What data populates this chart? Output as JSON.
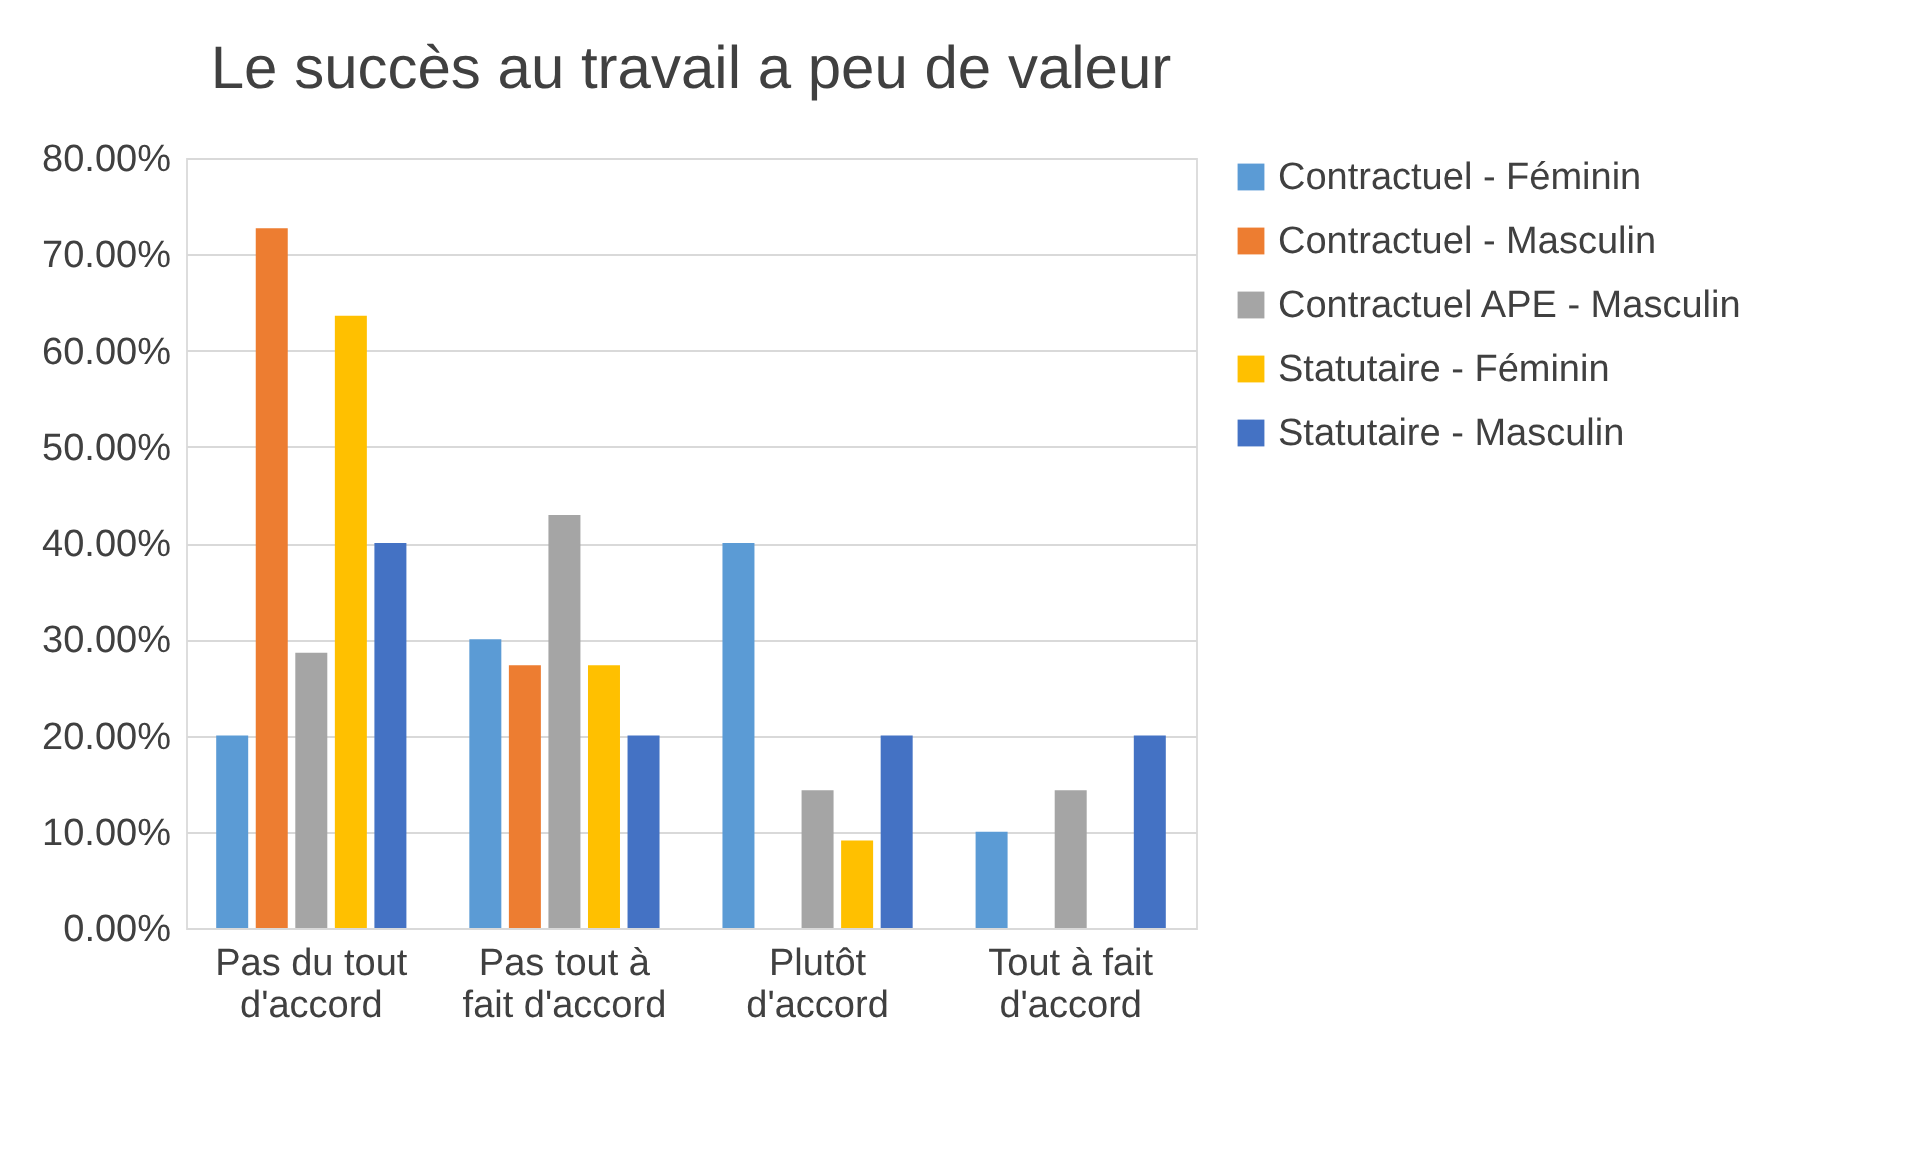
{
  "chart_data": {
    "type": "bar",
    "title": "Le succès au travail a peu de valeur",
    "categories": [
      "Pas du tout d'accord",
      "Pas tout à fait d'accord",
      "Plutôt d'accord",
      "Tout à fait d'accord"
    ],
    "series": [
      {
        "name": "Contractuel - Féminin",
        "color": "#5b9bd5",
        "values": [
          20,
          30,
          40,
          10
        ]
      },
      {
        "name": "Contractuel - Masculin",
        "color": "#ed7d31",
        "values": [
          72.7,
          27.3,
          null,
          null
        ]
      },
      {
        "name": "Contractuel APE - Masculin",
        "color": "#a5a5a5",
        "values": [
          28.6,
          42.9,
          14.3,
          14.3
        ]
      },
      {
        "name": "Statutaire - Féminin",
        "color": "#ffc000",
        "values": [
          63.6,
          27.3,
          9.1,
          null
        ]
      },
      {
        "name": "Statutaire - Masculin",
        "color": "#4472c4",
        "values": [
          40,
          20,
          20,
          20
        ]
      }
    ],
    "ylim": [
      0,
      80
    ],
    "yticks": [
      {
        "value": 0,
        "label": "0.00%"
      },
      {
        "value": 10,
        "label": "10.00%"
      },
      {
        "value": 20,
        "label": "20.00%"
      },
      {
        "value": 30,
        "label": "30.00%"
      },
      {
        "value": 40,
        "label": "40.00%"
      },
      {
        "value": 50,
        "label": "50.00%"
      },
      {
        "value": 60,
        "label": "60.00%"
      },
      {
        "value": 70,
        "label": "70.00%"
      },
      {
        "value": 80,
        "label": "80.00%"
      }
    ],
    "grid": "y",
    "legend": "right"
  }
}
